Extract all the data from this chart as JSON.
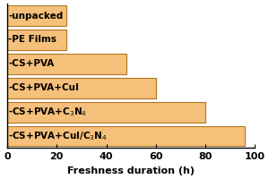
{
  "categories": [
    "-CS+PVA+CuI/C$_3$N$_4$",
    "-CS+PVA+C$_3$N$_4$",
    "-CS+PVA+CuI",
    "-CS+PVA",
    "-PE Films",
    "-unpacked"
  ],
  "values": [
    96,
    80,
    60,
    48,
    24,
    24
  ],
  "bar_color": "#F5C07A",
  "bar_edgecolor": "#B07820",
  "xlabel": "Freshness duration (h)",
  "xlim": [
    0,
    100
  ],
  "xticks": [
    0,
    20,
    40,
    60,
    80,
    100
  ],
  "background_color": "#ffffff",
  "fontsize_labels": 7.5,
  "fontsize_ticks": 8,
  "fontsize_xlabel": 8
}
